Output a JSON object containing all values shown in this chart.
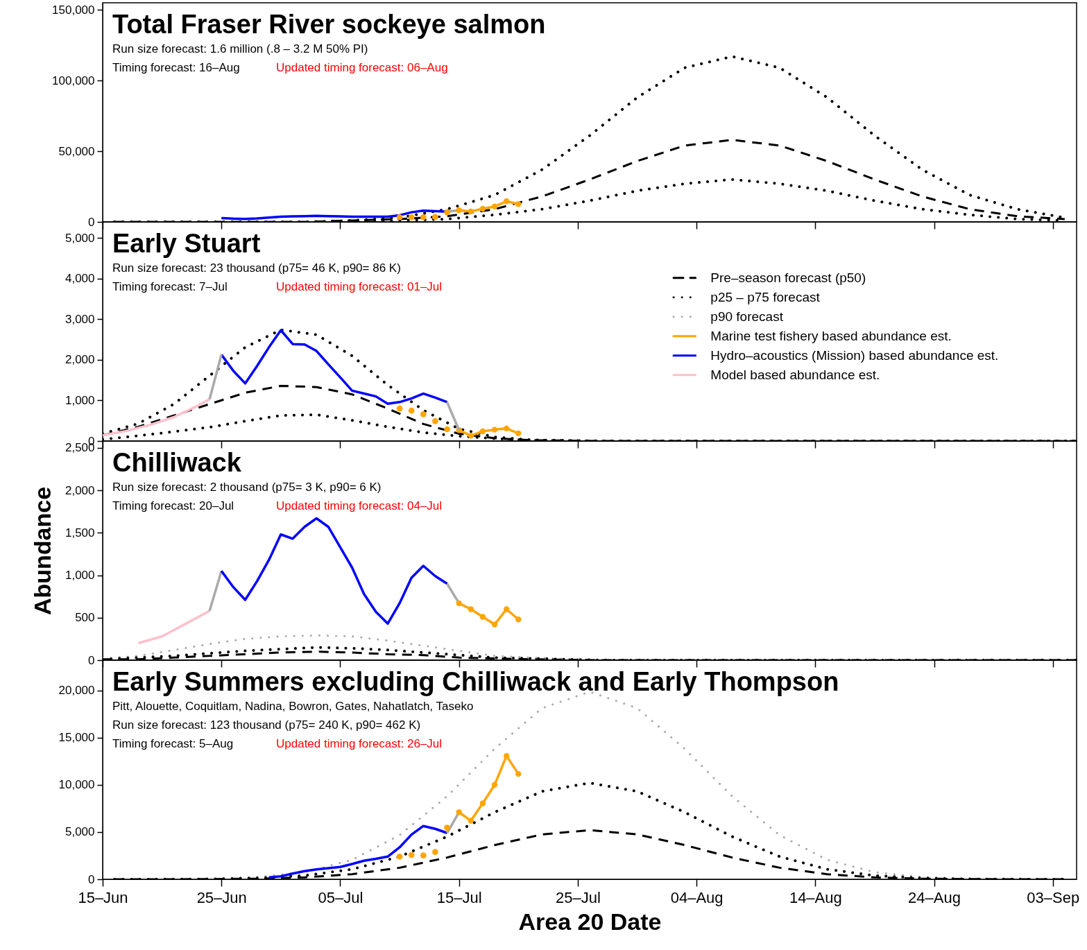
{
  "chart_data": [
    {
      "type": "line",
      "title": "Total Fraser River sockeye salmon",
      "subtitle": "Run size forecast: 1.6 million (.8 – 3.2 M 50% PI)",
      "annotations": [
        "Timing forecast: 16–Aug",
        "Updated timing forecast: 06–Aug"
      ],
      "xlim": [
        "--06-15",
        "--09-05"
      ],
      "xticks": [
        {
          "value": "--06-15",
          "label": "15–Jun"
        },
        {
          "value": "--06-25",
          "label": "25–Jun"
        },
        {
          "value": "--07-05",
          "label": "05–Jul"
        },
        {
          "value": "--07-15",
          "label": "15–Jul"
        },
        {
          "value": "--07-25",
          "label": "25–Jul"
        },
        {
          "value": "--08-04",
          "label": "04–Aug"
        },
        {
          "value": "--08-14",
          "label": "14–Aug"
        },
        {
          "value": "--08-24",
          "label": "24–Aug"
        },
        {
          "value": "--09-03",
          "label": "03–Sep"
        }
      ],
      "ylim": [
        0,
        155000
      ],
      "yticks": [
        {
          "value": 0,
          "label": "0"
        },
        {
          "value": 50000,
          "label": "50,000"
        },
        {
          "value": 100000,
          "label": "100,000"
        },
        {
          "value": 150000,
          "label": "150,000"
        }
      ],
      "tick_labels": "y",
      "series": [
        {
          "color": "#000000",
          "line_style": "dashed",
          "x": [
            "--06-16",
            "--06-20",
            "--06-24",
            "--06-28",
            "--07-02",
            "--07-06",
            "--07-10",
            "--07-14",
            "--07-18",
            "--07-22",
            "--07-26",
            "--07-30",
            "--08-03",
            "--08-07",
            "--08-11",
            "--08-15",
            "--08-19",
            "--08-23",
            "--08-27",
            "--08-31",
            "--09-04"
          ],
          "values": [
            0,
            0,
            0,
            0,
            0,
            1000,
            2000,
            4000,
            9000,
            18000,
            30000,
            43000,
            54000,
            58000,
            54000,
            43000,
            30000,
            18000,
            9000,
            4000,
            2000
          ]
        },
        {
          "color": "#000000",
          "line_style": "dotted",
          "x": [
            "--06-16",
            "--06-20",
            "--06-24",
            "--06-28",
            "--07-02",
            "--07-06",
            "--07-10",
            "--07-14",
            "--07-18",
            "--07-22",
            "--07-26",
            "--07-30",
            "--08-03",
            "--08-07",
            "--08-11",
            "--08-15",
            "--08-19",
            "--08-23",
            "--08-27",
            "--08-31",
            "--09-04"
          ],
          "values": [
            0,
            0,
            0,
            0,
            0,
            1000,
            3000,
            9000,
            19000,
            37000,
            61000,
            88000,
            109000,
            117000,
            109000,
            88000,
            61000,
            37000,
            19000,
            9000,
            3000
          ]
        },
        {
          "color": "#000000",
          "line_style": "dotted",
          "x": [
            "--06-16",
            "--06-20",
            "--06-24",
            "--06-28",
            "--07-02",
            "--07-06",
            "--07-10",
            "--07-14",
            "--07-18",
            "--07-22",
            "--07-26",
            "--07-30",
            "--08-03",
            "--08-07",
            "--08-11",
            "--08-15",
            "--08-19",
            "--08-23",
            "--08-27",
            "--08-31",
            "--09-04"
          ],
          "values": [
            0,
            0,
            0,
            0,
            0,
            0,
            1000,
            2000,
            5000,
            9000,
            15000,
            22000,
            27000,
            30000,
            27000,
            22000,
            15000,
            9000,
            5000,
            2000,
            1000
          ]
        },
        {
          "color": "#0000ff",
          "line_style": "solid",
          "x": [
            "--06-25",
            "--06-26",
            "--06-27",
            "--06-28",
            "--06-29",
            "--06-30",
            "--07-01",
            "--07-02",
            "--07-03",
            "--07-04",
            "--07-05",
            "--07-06",
            "--07-07",
            "--07-08",
            "--07-09",
            "--07-10",
            "--07-11",
            "--07-12",
            "--07-13",
            "--07-14"
          ],
          "values": [
            2700,
            2300,
            2100,
            2500,
            3100,
            3700,
            3900,
            4100,
            4300,
            4100,
            3900,
            3700,
            3700,
            3700,
            3700,
            4700,
            6800,
            8000,
            7600,
            7200
          ]
        },
        {
          "color": "#a9a9a9",
          "line_style": "solid",
          "x": [
            "--07-14",
            "--07-15"
          ],
          "values": [
            7200,
            8200
          ]
        },
        {
          "color": "#ffa500",
          "line_style": "solid",
          "marker": "circle",
          "x": [
            "--07-15",
            "--07-16",
            "--07-17",
            "--07-18",
            "--07-19",
            "--07-20"
          ],
          "values": [
            8200,
            7400,
            9300,
            10900,
            14600,
            12600
          ]
        },
        {
          "type": "scatter",
          "color": "#ffa500",
          "marker": "circle",
          "x": [
            "--07-10",
            "--07-11",
            "--07-12",
            "--07-13",
            "--07-14"
          ],
          "values": [
            3300,
            3300,
            3300,
            3500,
            6800
          ]
        }
      ]
    },
    {
      "type": "line",
      "title": "Early Stuart",
      "subtitle": "Run size forecast: 23 thousand (p75= 46 K, p90= 86 K)",
      "annotations": [
        "Timing forecast: 7–Jul",
        "Updated timing forecast: 01–Jul"
      ],
      "xlim": [
        "--06-15",
        "--09-05"
      ],
      "xticks": [
        {
          "value": "--06-15",
          "label": "15–Jun"
        },
        {
          "value": "--06-25",
          "label": "25–Jun"
        },
        {
          "value": "--07-05",
          "label": "05–Jul"
        },
        {
          "value": "--07-15",
          "label": "15–Jul"
        },
        {
          "value": "--07-25",
          "label": "25–Jul"
        },
        {
          "value": "--08-04",
          "label": "04–Aug"
        },
        {
          "value": "--08-14",
          "label": "14–Aug"
        },
        {
          "value": "--08-24",
          "label": "24–Aug"
        },
        {
          "value": "--09-03",
          "label": "03–Sep"
        }
      ],
      "ylim": [
        0,
        5400
      ],
      "yticks": [
        {
          "value": 0,
          "label": "0"
        },
        {
          "value": 1000,
          "label": "1,000"
        },
        {
          "value": 2000,
          "label": "2,000"
        },
        {
          "value": 3000,
          "label": "3,000"
        },
        {
          "value": 4000,
          "label": "4,000"
        },
        {
          "value": 5000,
          "label": "5,000"
        }
      ],
      "tick_labels": "y",
      "legend": "right",
      "series": [
        {
          "name": "Pre–season forecast (p50)",
          "color": "#000000",
          "line_style": "dashed",
          "x": [
            "--06-15",
            "--06-18",
            "--06-21",
            "--06-24",
            "--06-27",
            "--06-30",
            "--07-03",
            "--07-06",
            "--07-09",
            "--07-12",
            "--07-15",
            "--07-18",
            "--07-21",
            "--07-27",
            "--08-14",
            "--09-05"
          ],
          "values": [
            140,
            350,
            630,
            910,
            1190,
            1360,
            1330,
            1150,
            800,
            420,
            180,
            70,
            20,
            0,
            0,
            0
          ]
        },
        {
          "name": "p25 – p75 forecast",
          "color": "#000000",
          "line_style": "dotted",
          "x": [
            "--06-15",
            "--06-18",
            "--06-21",
            "--06-24",
            "--06-27",
            "--06-30",
            "--07-03",
            "--07-06",
            "--07-09",
            "--07-12",
            "--07-15",
            "--07-18",
            "--07-21",
            "--07-27",
            "--08-14",
            "--09-05"
          ],
          "values": [
            180,
            430,
            910,
            1610,
            2310,
            2740,
            2620,
            2100,
            1380,
            760,
            300,
            100,
            30,
            0,
            0,
            0
          ]
        },
        {
          "color": "#000000",
          "line_style": "dotted",
          "x": [
            "--06-15",
            "--06-18",
            "--06-21",
            "--06-24",
            "--06-27",
            "--06-30",
            "--07-03",
            "--07-06",
            "--07-09",
            "--07-12",
            "--07-15",
            "--07-18",
            "--07-21",
            "--07-27",
            "--08-14",
            "--09-05"
          ],
          "values": [
            40,
            130,
            230,
            340,
            490,
            630,
            650,
            510,
            350,
            210,
            120,
            60,
            20,
            0,
            0,
            0
          ]
        },
        {
          "name": "p90 forecast",
          "color": "#aaaaaa",
          "line_style": "dotted"
        },
        {
          "name": "Marine test fishery based abundance est.",
          "color": "#ffa500",
          "line_style": "solid",
          "marker": "circle",
          "x": [
            "--07-15",
            "--07-16",
            "--07-17",
            "--07-18",
            "--07-19",
            "--07-20"
          ],
          "values": [
            270,
            130,
            240,
            280,
            310,
            190
          ]
        },
        {
          "name": "Hydro–acoustics (Mission) based abundance est.",
          "color": "#0000ff",
          "line_style": "solid",
          "x": [
            "--06-25",
            "--06-26",
            "--06-27",
            "--06-28",
            "--06-29",
            "--06-30",
            "--07-01",
            "--07-02",
            "--07-03",
            "--07-04",
            "--07-05",
            "--07-06",
            "--07-07",
            "--07-08",
            "--07-09",
            "--07-10",
            "--07-11",
            "--07-12",
            "--07-13",
            "--07-14"
          ],
          "values": [
            2130,
            1730,
            1420,
            1850,
            2310,
            2730,
            2390,
            2380,
            2220,
            1890,
            1570,
            1240,
            1170,
            1100,
            920,
            960,
            1050,
            1170,
            1070,
            960
          ]
        },
        {
          "name": "Model based abundance est.",
          "color": "#ffc0cb",
          "line_style": "solid",
          "x": [
            "--06-15",
            "--06-17",
            "--06-19",
            "--06-21",
            "--06-23",
            "--06-24"
          ],
          "values": [
            140,
            250,
            400,
            590,
            870,
            1030
          ]
        },
        {
          "color": "#a9a9a9",
          "line_style": "solid",
          "x": [
            "--06-24",
            "--06-25"
          ],
          "values": [
            1030,
            2130
          ]
        },
        {
          "color": "#a9a9a9",
          "line_style": "solid",
          "x": [
            "--07-14",
            "--07-15"
          ],
          "values": [
            960,
            270
          ]
        },
        {
          "type": "scatter",
          "color": "#ffa500",
          "marker": "circle",
          "x": [
            "--07-10",
            "--07-11",
            "--07-12",
            "--07-13",
            "--07-14"
          ],
          "values": [
            800,
            750,
            660,
            490,
            290
          ]
        }
      ]
    },
    {
      "type": "line",
      "title": "Chilliwack",
      "subtitle": "Run size forecast: 2 thousand (p75= 3 K, p90= 6 K)",
      "annotations": [
        "Timing forecast: 20–Jul",
        "Updated timing forecast: 04–Jul"
      ],
      "ylabel": "Abundance",
      "xlim": [
        "--06-15",
        "--09-05"
      ],
      "xticks": [
        {
          "value": "--06-15",
          "label": "15–Jun"
        },
        {
          "value": "--06-25",
          "label": "25–Jun"
        },
        {
          "value": "--07-05",
          "label": "05–Jul"
        },
        {
          "value": "--07-15",
          "label": "15–Jul"
        },
        {
          "value": "--07-25",
          "label": "25–Jul"
        },
        {
          "value": "--08-04",
          "label": "04–Aug"
        },
        {
          "value": "--08-14",
          "label": "14–Aug"
        },
        {
          "value": "--08-24",
          "label": "24–Aug"
        },
        {
          "value": "--09-03",
          "label": "03–Sep"
        }
      ],
      "ylim": [
        0,
        2580
      ],
      "yticks": [
        {
          "value": 0,
          "label": "0"
        },
        {
          "value": 500,
          "label": "500"
        },
        {
          "value": 1000,
          "label": "1,000"
        },
        {
          "value": 1500,
          "label": "1,500"
        },
        {
          "value": 2000,
          "label": "2,000"
        },
        {
          "value": 2500,
          "label": "2,500"
        }
      ],
      "tick_labels": "y",
      "series": [
        {
          "color": "#aaaaaa",
          "line_style": "dotted",
          "x": [
            "--06-15",
            "--06-18",
            "--06-21",
            "--06-24",
            "--06-27",
            "--06-30",
            "--07-03",
            "--07-06",
            "--07-09",
            "--07-12",
            "--07-15",
            "--07-18",
            "--07-21",
            "--07-27",
            "--08-14",
            "--09-05"
          ],
          "values": [
            20,
            50,
            120,
            190,
            250,
            280,
            290,
            280,
            230,
            170,
            110,
            50,
            30,
            0,
            0,
            0
          ]
        },
        {
          "color": "#000000",
          "line_style": "dashed",
          "x": [
            "--06-15",
            "--06-18",
            "--06-21",
            "--06-24",
            "--06-27",
            "--06-30",
            "--07-03",
            "--07-06",
            "--07-09",
            "--07-12",
            "--07-15",
            "--07-18",
            "--07-21",
            "--07-27",
            "--08-14",
            "--09-05"
          ],
          "values": [
            10,
            10,
            30,
            50,
            70,
            90,
            100,
            90,
            70,
            60,
            30,
            20,
            10,
            0,
            0,
            0
          ]
        },
        {
          "color": "#000000",
          "line_style": "dotted",
          "x": [
            "--06-15",
            "--06-18",
            "--06-21",
            "--06-24",
            "--06-27",
            "--06-30",
            "--07-03",
            "--07-06",
            "--07-09",
            "--07-12",
            "--07-15",
            "--07-18",
            "--07-21",
            "--07-27",
            "--08-14",
            "--09-05"
          ],
          "values": [
            10,
            30,
            50,
            80,
            110,
            130,
            150,
            140,
            120,
            90,
            60,
            30,
            20,
            0,
            0,
            0
          ]
        },
        {
          "color": "#ffc0cb",
          "line_style": "solid",
          "x": [
            "--06-18",
            "--06-20",
            "--06-22",
            "--06-24"
          ],
          "values": [
            200,
            280,
            430,
            580
          ]
        },
        {
          "color": "#a9a9a9",
          "line_style": "solid",
          "x": [
            "--06-24",
            "--06-25"
          ],
          "values": [
            580,
            1050
          ]
        },
        {
          "color": "#0000ff",
          "line_style": "solid",
          "x": [
            "--06-25",
            "--06-26",
            "--06-27",
            "--06-28",
            "--06-29",
            "--06-30",
            "--07-01",
            "--07-02",
            "--07-03",
            "--07-04",
            "--07-05",
            "--07-06",
            "--07-07",
            "--07-08",
            "--07-09",
            "--07-10",
            "--07-11",
            "--07-12",
            "--07-13",
            "--07-14"
          ],
          "values": [
            1050,
            860,
            710,
            930,
            1180,
            1480,
            1430,
            1570,
            1670,
            1570,
            1330,
            1090,
            780,
            570,
            430,
            670,
            970,
            1110,
            990,
            900
          ]
        },
        {
          "color": "#a9a9a9",
          "line_style": "solid",
          "x": [
            "--07-14",
            "--07-15"
          ],
          "values": [
            900,
            670
          ]
        },
        {
          "color": "#ffa500",
          "line_style": "solid",
          "marker": "circle",
          "x": [
            "--07-15",
            "--07-16",
            "--07-17",
            "--07-18",
            "--07-19",
            "--07-20"
          ],
          "values": [
            670,
            600,
            510,
            420,
            600,
            480
          ]
        }
      ]
    },
    {
      "type": "line",
      "title": "Early Summers excluding Chilliwack and Early Thompson",
      "subtitle": "Pitt, Alouette, Coquitlam, Nadina, Bowron, Gates, Nahatlatch, Taseko",
      "annotations": [
        "Run size forecast: 123 thousand (p75= 240 K, p90= 462 K)",
        "Timing forecast: 5–Aug",
        "Updated timing forecast: 26–Jul"
      ],
      "xlabel": "Area 20 Date",
      "xlim": [
        "--06-15",
        "--09-05"
      ],
      "xticks": [
        {
          "value": "--06-15",
          "label": "15–Jun"
        },
        {
          "value": "--06-25",
          "label": "25–Jun"
        },
        {
          "value": "--07-05",
          "label": "05–Jul"
        },
        {
          "value": "--07-15",
          "label": "15–Jul"
        },
        {
          "value": "--07-25",
          "label": "25–Jul"
        },
        {
          "value": "--08-04",
          "label": "04–Aug"
        },
        {
          "value": "--08-14",
          "label": "14–Aug"
        },
        {
          "value": "--08-24",
          "label": "24–Aug"
        },
        {
          "value": "--09-03",
          "label": "03–Sep"
        }
      ],
      "ylim": [
        0,
        23200
      ],
      "yticks": [
        {
          "value": 0,
          "label": "0"
        },
        {
          "value": 5000,
          "label": "5,000"
        },
        {
          "value": 10000,
          "label": "10,000"
        },
        {
          "value": 15000,
          "label": "15,000"
        },
        {
          "value": 20000,
          "label": "20,000"
        }
      ],
      "series": [
        {
          "color": "#aaaaaa",
          "line_style": "dotted",
          "x": [
            "--06-16",
            "--06-20",
            "--06-24",
            "--06-28",
            "--07-02",
            "--07-06",
            "--07-10",
            "--07-14",
            "--07-18",
            "--07-22",
            "--07-26",
            "--07-30",
            "--08-03",
            "--08-07",
            "--08-11",
            "--08-15",
            "--08-19",
            "--08-23",
            "--08-27",
            "--08-31",
            "--09-04"
          ],
          "values": [
            0,
            10,
            60,
            240,
            750,
            2060,
            4670,
            8790,
            13820,
            18120,
            19850,
            18120,
            13820,
            8790,
            4670,
            2060,
            750,
            240,
            60,
            10,
            0
          ]
        },
        {
          "color": "#000000",
          "line_style": "dashed",
          "x": [
            "--06-16",
            "--06-20",
            "--06-24",
            "--06-28",
            "--07-02",
            "--07-06",
            "--07-10",
            "--07-14",
            "--07-18",
            "--07-22",
            "--07-26",
            "--07-30",
            "--08-03",
            "--08-07",
            "--08-11",
            "--08-15",
            "--08-19",
            "--08-23",
            "--08-27",
            "--08-31",
            "--09-04"
          ],
          "values": [
            0,
            0,
            20,
            60,
            200,
            540,
            1220,
            2300,
            3620,
            4750,
            5200,
            4750,
            3620,
            2300,
            1220,
            540,
            200,
            60,
            20,
            0,
            0
          ]
        },
        {
          "color": "#000000",
          "line_style": "dotted",
          "x": [
            "--06-16",
            "--06-20",
            "--06-24",
            "--06-28",
            "--07-02",
            "--07-06",
            "--07-10",
            "--07-14",
            "--07-18",
            "--07-22",
            "--07-26",
            "--07-30",
            "--08-03",
            "--08-07",
            "--08-11",
            "--08-15",
            "--08-19",
            "--08-23",
            "--08-27",
            "--08-31",
            "--09-04"
          ],
          "values": [
            0,
            10,
            30,
            120,
            390,
            1060,
            2400,
            4520,
            7100,
            9310,
            10200,
            9310,
            7100,
            4520,
            2400,
            1060,
            390,
            120,
            30,
            10,
            0
          ]
        },
        {
          "color": "#0000ff",
          "line_style": "solid",
          "x": [
            "--06-29",
            "--06-30",
            "--07-01",
            "--07-02",
            "--07-03",
            "--07-04",
            "--07-05",
            "--07-06",
            "--07-07",
            "--07-08",
            "--07-09",
            "--07-10",
            "--07-11",
            "--07-12",
            "--07-13",
            "--07-14"
          ],
          "values": [
            200,
            320,
            610,
            860,
            1050,
            1180,
            1300,
            1620,
            1960,
            2160,
            2400,
            3380,
            4730,
            5640,
            5340,
            4900
          ]
        },
        {
          "color": "#a9a9a9",
          "line_style": "solid",
          "x": [
            "--07-14",
            "--07-15"
          ],
          "values": [
            4900,
            7100
          ]
        },
        {
          "color": "#ffa500",
          "line_style": "solid",
          "marker": "circle",
          "x": [
            "--07-15",
            "--07-16",
            "--07-17",
            "--07-18",
            "--07-19",
            "--07-20"
          ],
          "values": [
            7100,
            6200,
            8040,
            10000,
            13060,
            11150
          ]
        },
        {
          "type": "scatter",
          "color": "#ffa500",
          "marker": "circle",
          "x": [
            "--07-10",
            "--07-11",
            "--07-12",
            "--07-13",
            "--07-14"
          ],
          "values": [
            2400,
            2570,
            2520,
            2890,
            5460
          ]
        }
      ]
    }
  ]
}
